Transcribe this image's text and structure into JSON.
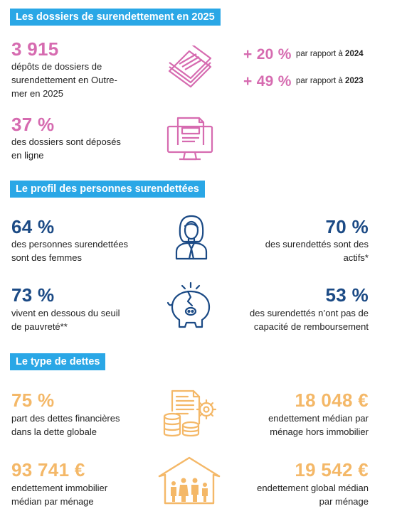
{
  "sections": {
    "dossiers": "Les dossiers de surendettement en 2025",
    "profil": "Le profil des personnes surendettées",
    "dettes": "Le type de dettes"
  },
  "dossiers": {
    "depots_value": "3 915",
    "depots_text": "dépôts de dossiers de surendettement en Outre-mer en 2025",
    "var1_value": "+ 20 %",
    "var1_prefix": "par rapport à ",
    "var1_year": "2024",
    "var2_value": "+ 49 %",
    "var2_prefix": "par rapport à ",
    "var2_year": "2023",
    "ligne_value": "37 %",
    "ligne_text": "des dossiers sont déposés en ligne"
  },
  "profil": {
    "femmes_value": "64 %",
    "femmes_text": "des personnes surendettées sont des femmes",
    "actifs_value": "70 %",
    "actifs_text": "des surendettés sont des actifs*",
    "pauvrete_value": "73 %",
    "pauvrete_text": "vivent en dessous du seuil de pauvreté**",
    "capacite_value": "53 %",
    "capacite_text": "des surendettés n’ont pas de capacité de remboursement"
  },
  "dettes": {
    "financieres_value": "75 %",
    "financieres_text": "part des dettes financières dans la dette globale",
    "hors_immo_value": "18 048 €",
    "hors_immo_text": "endettement médian par ménage hors immobilier",
    "immo_value": "93 741 €",
    "immo_text": "endettement immobilier médian par ménage",
    "global_value": "19 542 €",
    "global_text": "endettement global médian par ménage"
  },
  "colors": {
    "banner": "#2aa7e6",
    "pink": "#d66bb0",
    "blue": "#1b4a85",
    "orange": "#f4b868"
  },
  "icons": [
    "documents-stack-icon",
    "computer-form-icon",
    "woman-icon",
    "broken-piggy-bank-icon",
    "invoice-coins-gear-icon",
    "house-family-icon"
  ]
}
